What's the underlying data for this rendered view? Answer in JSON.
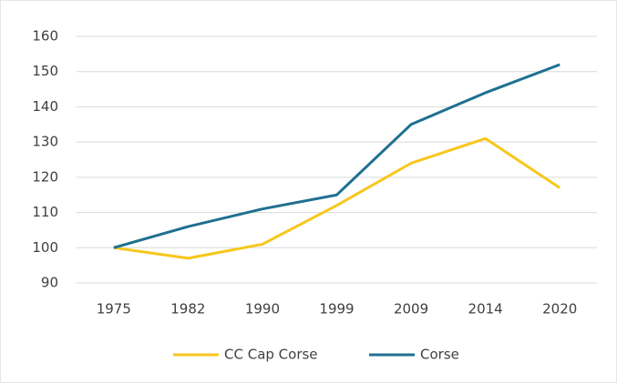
{
  "chart_data": {
    "type": "line",
    "categories": [
      "1975",
      "1982",
      "1990",
      "1999",
      "2009",
      "2014",
      "2020"
    ],
    "series": [
      {
        "name": "CC Cap Corse",
        "color": "#f7c71b",
        "values": [
          100,
          97,
          101,
          112,
          124,
          131,
          117
        ]
      },
      {
        "name": "Corse",
        "color": "#1f7090",
        "values": [
          100,
          106,
          111,
          115,
          135,
          144,
          152
        ]
      }
    ],
    "ylim": [
      90,
      160
    ],
    "yticks": [
      90,
      100,
      110,
      120,
      130,
      140,
      150,
      160
    ],
    "grid": true,
    "legend": "bottom"
  }
}
